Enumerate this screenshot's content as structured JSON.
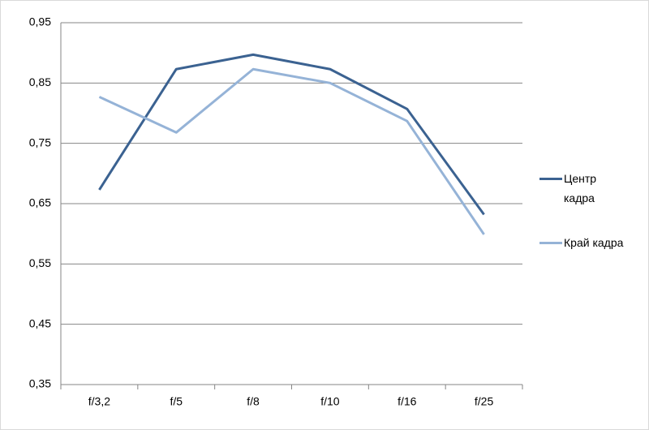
{
  "chart_data": {
    "type": "line",
    "categories": [
      "f/3,2",
      "f/5",
      "f/8",
      "f/10",
      "f/16",
      "f/25"
    ],
    "series": [
      {
        "name": "Центр кадра",
        "color": "#3b6291",
        "values": [
          0.673,
          0.873,
          0.897,
          0.873,
          0.807,
          0.632
        ]
      },
      {
        "name": "Край кадра",
        "color": "#95b3d7",
        "values": [
          0.827,
          0.768,
          0.873,
          0.85,
          0.787,
          0.599
        ]
      }
    ],
    "ylim": [
      0.35,
      0.95
    ],
    "yticks": [
      {
        "value": 0.35,
        "label": "0,35"
      },
      {
        "value": 0.45,
        "label": "0,45"
      },
      {
        "value": 0.55,
        "label": "0,55"
      },
      {
        "value": 0.65,
        "label": "0,65"
      },
      {
        "value": 0.75,
        "label": "0,75"
      },
      {
        "value": 0.85,
        "label": "0,85"
      },
      {
        "value": 0.95,
        "label": "0,95"
      }
    ],
    "grid": true,
    "legend": "right"
  }
}
